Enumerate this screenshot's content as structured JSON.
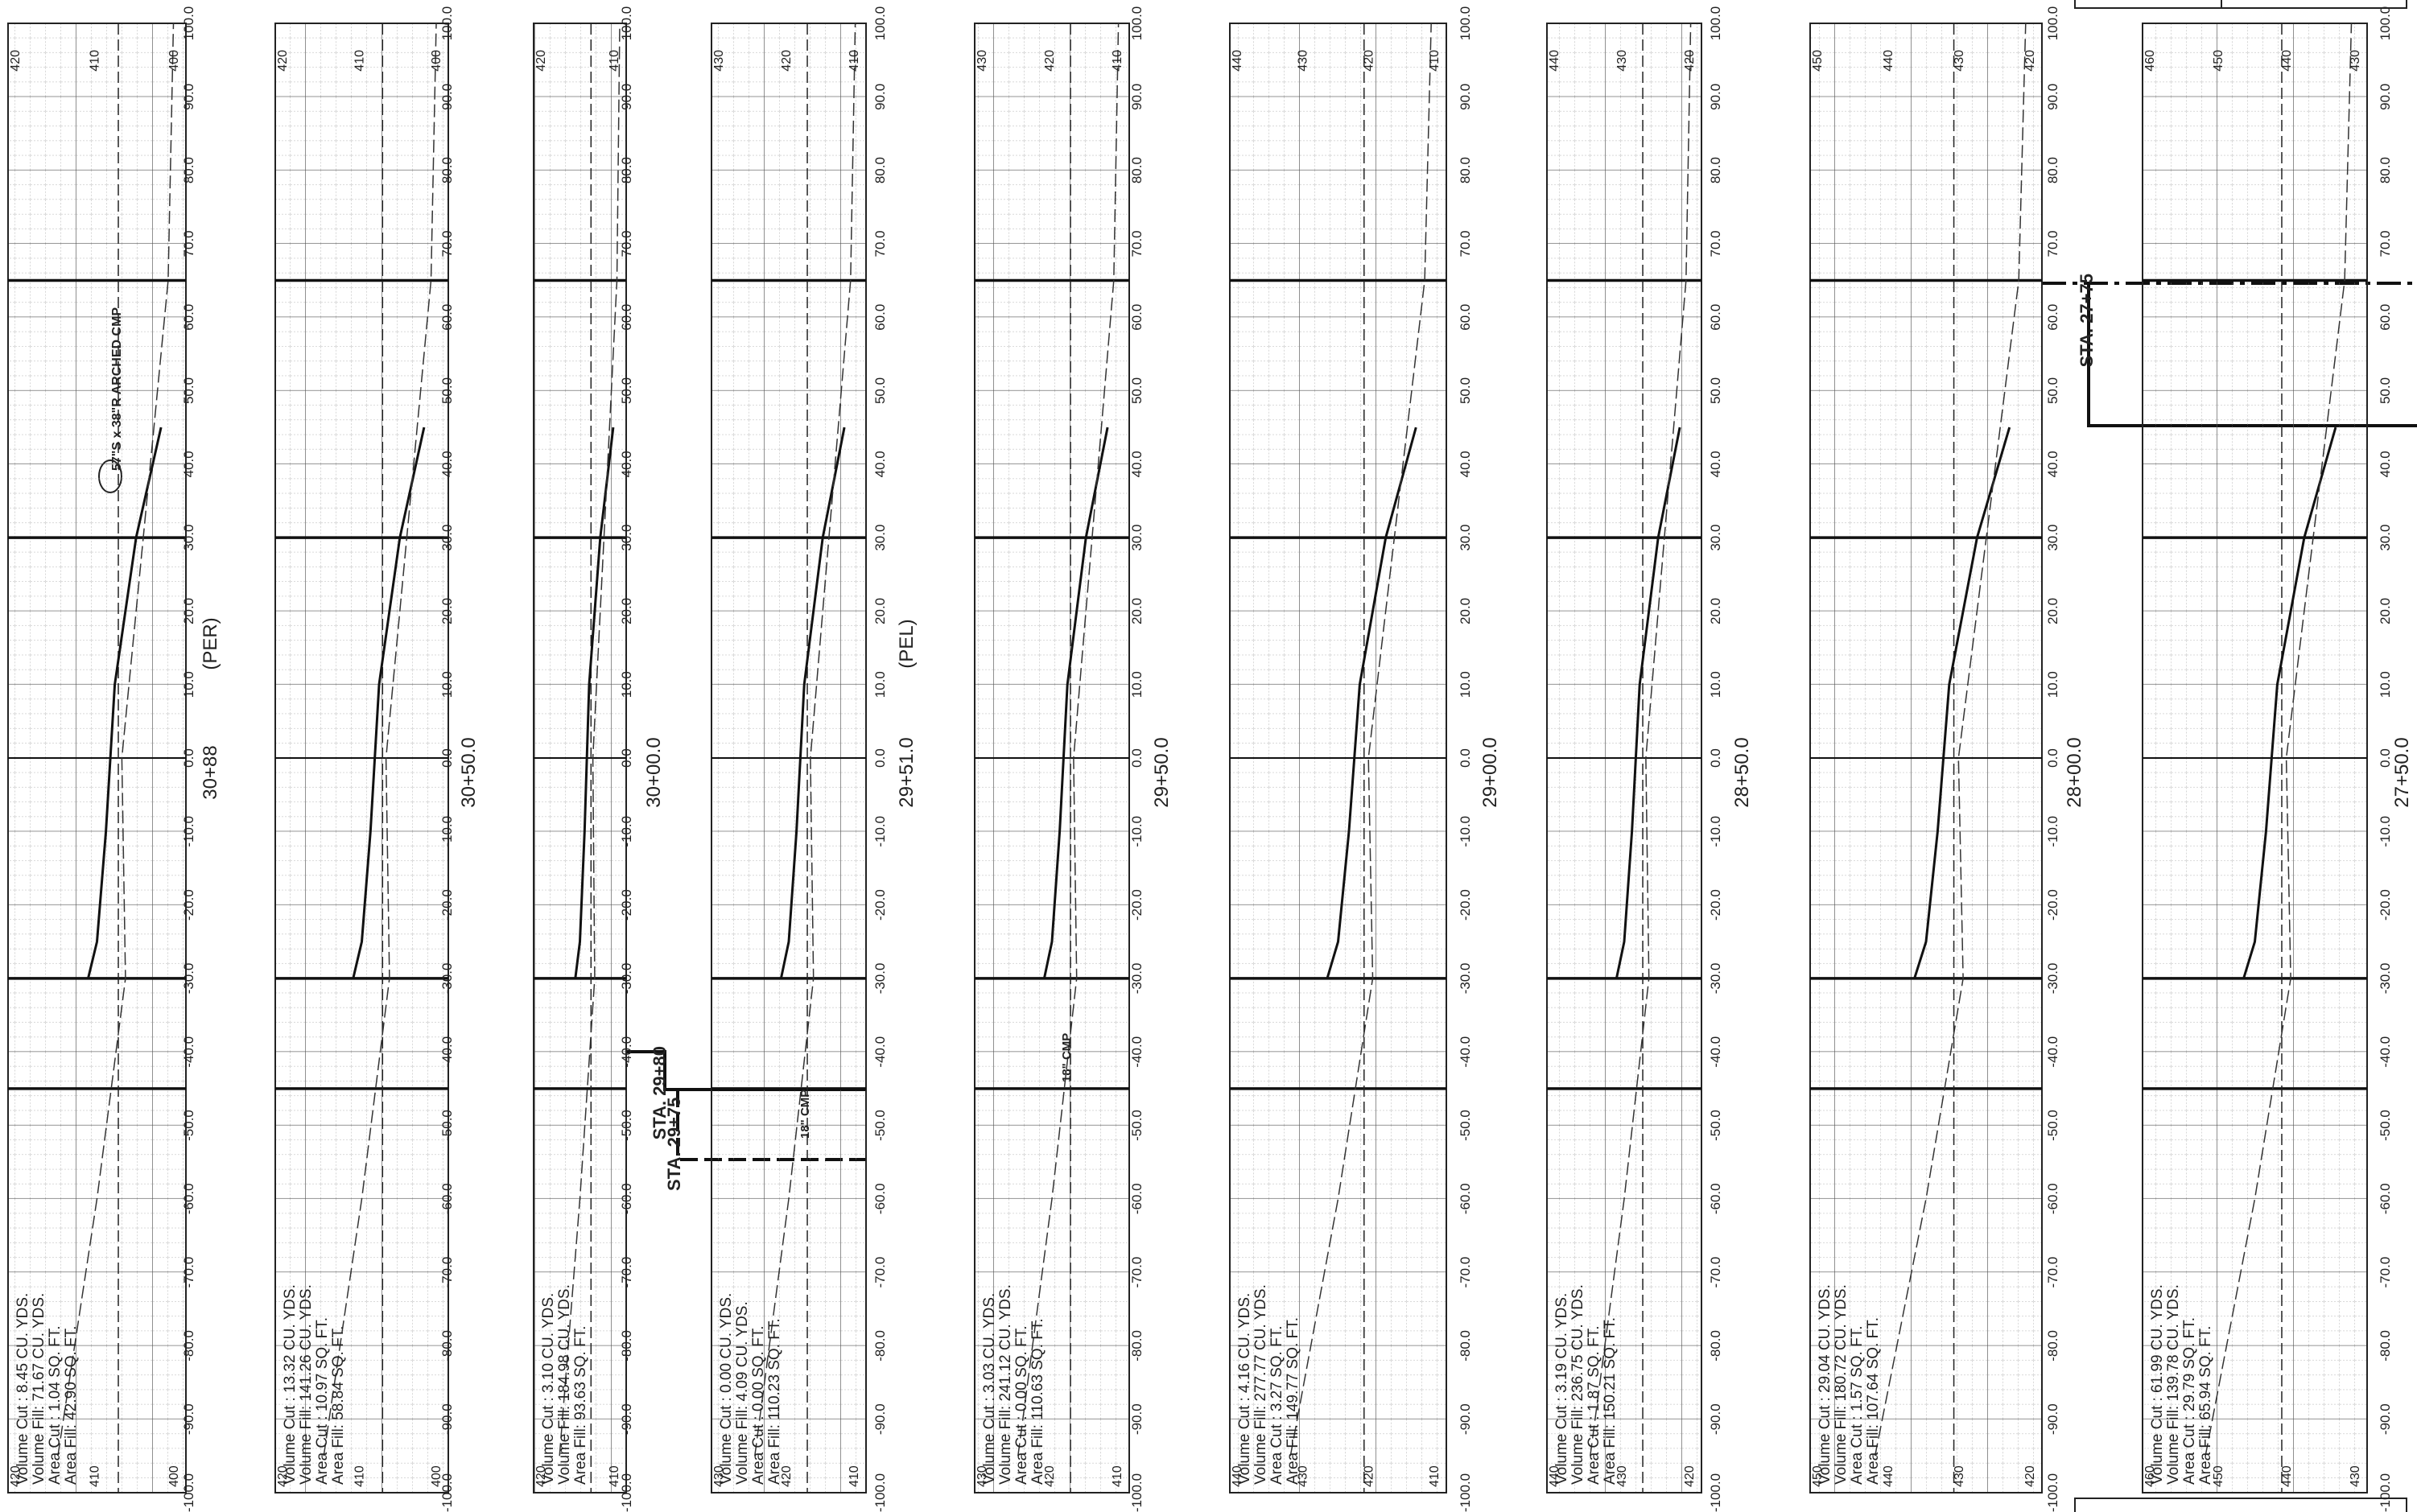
{
  "panels": [
    {
      "station": "30+88",
      "station_note": "(PER)",
      "elevations": [
        "420",
        "410",
        "400"
      ],
      "quantities": [
        "Volume Cut : 8.45 CU. YDS.",
        "Volume Fill: 71.67 CU. YDS.",
        "Area Cut : 1.04 SQ. FT.",
        "Area Fill: 42.90 SQ. FT."
      ]
    },
    {
      "station": "30+50.0",
      "elevations": [
        "420",
        "410",
        "400"
      ],
      "quantities": [
        "Volume Cut : 13.32 CU. YDS.",
        "Volume Fill: 141.26 CU. YDS.",
        "Area Cut : 10.97 SQ. FT.",
        "Area Fill: 58.84 SQ. FT."
      ]
    },
    {
      "station": "30+00.0",
      "elevations": [
        "420",
        "410"
      ],
      "quantities": [
        "Volume Cut : 3.10 CU. YDS.",
        "Volume Fill: 184.98 CU. YDS.",
        "Area Fill: 93.63 SQ. FT."
      ]
    },
    {
      "station": "29+51.0",
      "station_note": "(PEL)",
      "elevations": [
        "430",
        "420",
        "410"
      ],
      "quantities": [
        "Volume Cut : 0.00 CU. YDS.",
        "Volume Fill: 4.09 CU. YDS.",
        "Area Cut : 0.00 SQ. FT.",
        "Area Fill: 110.23 SQ. FT."
      ]
    },
    {
      "station": "29+50.0",
      "elevations": [
        "430",
        "420",
        "410"
      ],
      "quantities": [
        "Volume Cut : 3.03 CU. YDS.",
        "Volume Fill: 241.12 CU. YDS.",
        "Area Cut : 0.00 SQ. FT.",
        "Area Fill: 110.63 SQ. FT."
      ]
    },
    {
      "station": "29+00.0",
      "elevations": [
        "440",
        "430",
        "420",
        "410"
      ],
      "quantities": [
        "Volume Cut : 4.16 CU. YDS.",
        "Volume Fill: 277.77 CU. YDS.",
        "Area Cut : 3.27 SQ. FT.",
        "Area Fill: 149.77 SQ. FT."
      ]
    },
    {
      "station": "28+50.0",
      "elevations": [
        "440",
        "430",
        "420"
      ],
      "quantities": [
        "Volume Cut : 3.19 CU. YDS.",
        "Volume Fill: 236.75 CU. YDS.",
        "Area Cut : 1.87 SQ. FT.",
        "Area Fill: 150.21 SQ. FT."
      ]
    },
    {
      "station": "28+00.0",
      "elevations": [
        "450",
        "440",
        "430",
        "420"
      ],
      "quantities": [
        "Volume Cut : 29.04 CU. YDS.",
        "Volume Fill: 180.72 CU. YDS.",
        "Area Cut : 1.57 SQ. FT.",
        "Area Fill: 107.64 SQ. FT."
      ]
    },
    {
      "station": "27+50.0",
      "elevations": [
        "460",
        "450",
        "440",
        "430"
      ],
      "quantities": [
        "Volume Cut : 61.99 CU. YDS.",
        "Volume Fill: 139.78 CU. YDS.",
        "Area Cut : 29.79 SQ. FT.",
        "Area Fill: 65.94 SQ. FT."
      ]
    }
  ],
  "offset_labels": [
    "100.0",
    "90.0",
    "80.0",
    "70.0",
    "60.0",
    "50.0",
    "40.0",
    "30.0",
    "20.0",
    "10.0",
    "0.0",
    "-10.0",
    "-20.0",
    "-30.0",
    "-40.0",
    "-50.0",
    "-60.0",
    "-70.0",
    "-80.0",
    "-90.0",
    "-100.0"
  ],
  "annotations": [
    "STA. 29+80",
    "STA. 29+75",
    "STA. 27+75",
    "57\"S x 38\"R ARCHED CMP",
    "18\" CMP",
    "18\" CMP"
  ]
}
